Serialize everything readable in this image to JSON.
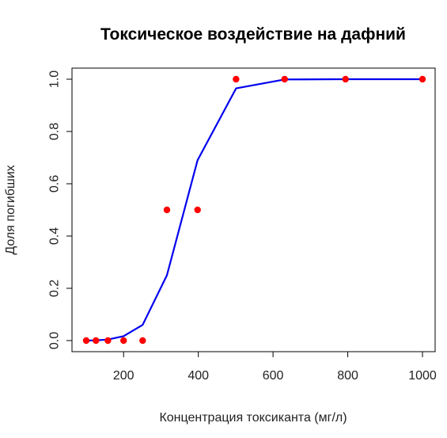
{
  "chart_data": {
    "type": "scatter",
    "title": "Токсическое воздействие на дафний",
    "xlabel": "Концентрация токсиканта (мг/л)",
    "ylabel": "Доля погибших",
    "xlim": [
      100,
      1000
    ],
    "ylim": [
      0,
      1
    ],
    "x_ticks": [
      200,
      400,
      600,
      800,
      1000
    ],
    "x_tick_labels": [
      "200",
      "400",
      "600",
      "800",
      "1000"
    ],
    "y_ticks": [
      0,
      0.2,
      0.4,
      0.6,
      0.8,
      1.0
    ],
    "y_tick_labels": [
      "0.0",
      "0.2",
      "0.4",
      "0.6",
      "0.8",
      "1.0"
    ],
    "grid": false,
    "series": [
      {
        "kind": "points",
        "color": "#ff0000",
        "x": [
          100,
          126,
          158,
          200,
          251,
          316,
          398,
          501,
          631,
          794,
          1000
        ],
        "y": [
          0,
          0,
          0,
          0,
          0,
          0.5,
          0.5,
          1,
          1,
          1,
          1
        ]
      },
      {
        "kind": "line",
        "color": "#0000ee",
        "x": [
          100,
          126,
          158,
          200,
          251,
          316,
          398,
          501,
          631,
          794,
          1000
        ],
        "y": [
          0.0,
          0.001,
          0.004,
          0.017,
          0.06,
          0.25,
          0.69,
          0.965,
          0.999,
          1.0,
          1.0
        ]
      }
    ]
  }
}
